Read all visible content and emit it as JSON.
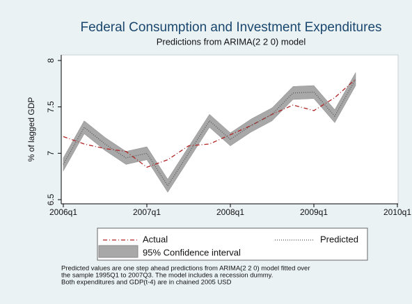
{
  "chart_data": {
    "type": "line",
    "title": "Federal Consumption and Investment Expenditures",
    "subtitle": "Predictions from ARIMA(2 2 0) model",
    "y_label": "% of lagged GDP",
    "x": [
      "2006q1",
      "2006q2",
      "2006q3",
      "2006q4",
      "2007q1",
      "2007q2",
      "2007q3",
      "2007q4",
      "2008q1",
      "2008q2",
      "2008q3",
      "2008q4",
      "2009q1",
      "2009q2",
      "2009q3"
    ],
    "xticks": [
      "2006q1",
      "2007q1",
      "2008q1",
      "2009q1",
      "2010q1"
    ],
    "ylim": [
      6.5,
      8
    ],
    "yticks": [
      6.5,
      7,
      7.5,
      8
    ],
    "series": [
      {
        "name": "Actual",
        "color": "#b22222",
        "dash": "6 3 1 3",
        "values": [
          7.18,
          7.1,
          7.05,
          7.02,
          6.85,
          6.93,
          7.08,
          7.1,
          7.2,
          7.3,
          7.42,
          7.52,
          7.46,
          7.6,
          7.8
        ]
      },
      {
        "name": "Predicted",
        "color": "#555555",
        "dash": "1 2",
        "values": [
          6.88,
          7.28,
          7.1,
          6.95,
          7.0,
          6.65,
          7.0,
          7.35,
          7.15,
          7.3,
          7.42,
          7.65,
          7.66,
          7.4,
          7.8
        ]
      }
    ],
    "band": {
      "name": "95% Confidence interval",
      "color": "#a8a8a8",
      "lower": [
        6.81,
        7.21,
        7.03,
        6.88,
        6.93,
        6.58,
        6.93,
        7.28,
        7.08,
        7.23,
        7.35,
        7.58,
        7.59,
        7.33,
        7.73
      ],
      "upper": [
        6.95,
        7.35,
        7.17,
        7.02,
        7.07,
        6.72,
        7.07,
        7.42,
        7.22,
        7.37,
        7.49,
        7.72,
        7.73,
        7.47,
        7.87
      ]
    },
    "note": [
      "Predicted values are one step ahead predictions from ARIMA(2 2 0) model fitted over",
      "the sample 1995Q1 to 2007Q3. The model includes a recession dummy.",
      "Both expenditures and GDP(t-4) are in chained 2005 USD"
    ]
  }
}
